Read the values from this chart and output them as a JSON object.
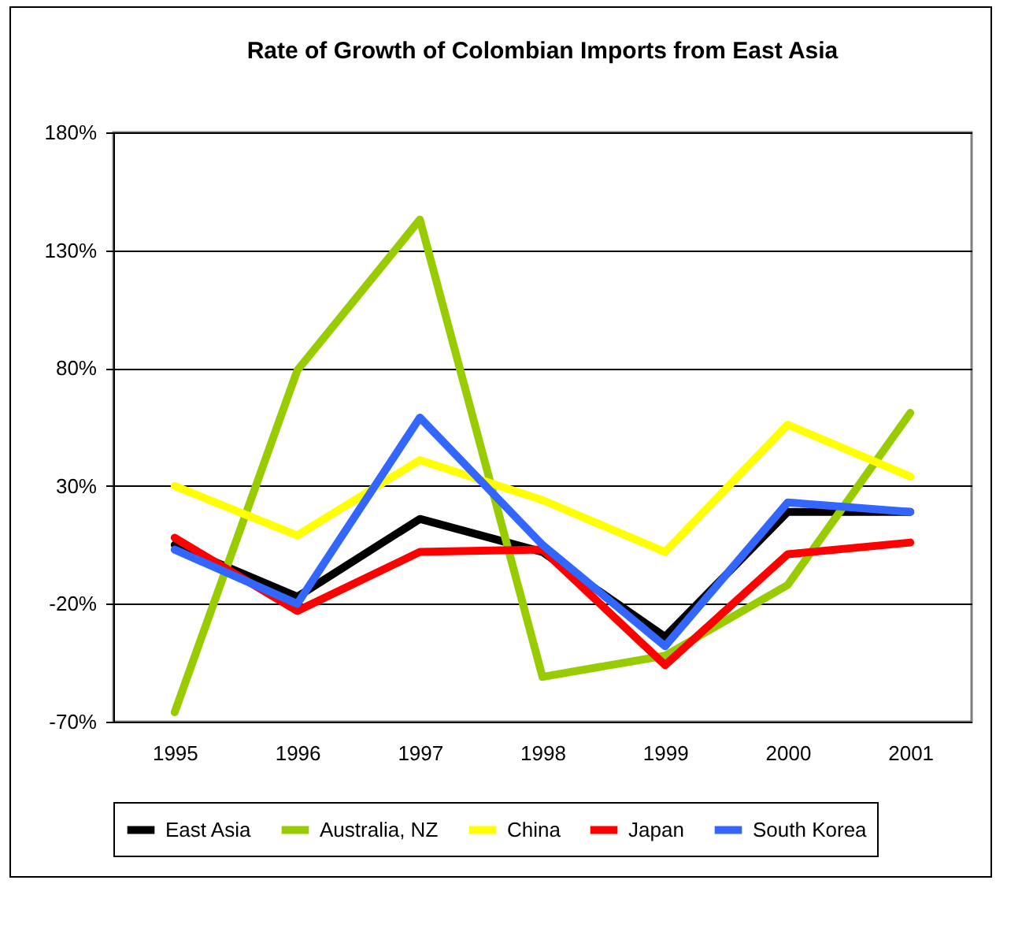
{
  "chart_data": {
    "type": "line",
    "title": "Rate of Growth of Colombian Imports from East Asia",
    "categories": [
      "1995",
      "1996",
      "1997",
      "1998",
      "1999",
      "2000",
      "2001"
    ],
    "series": [
      {
        "name": "East Asia",
        "color": "#000000",
        "values": [
          5,
          -17,
          16,
          2,
          -34,
          19,
          19
        ]
      },
      {
        "name": "Australia, NZ",
        "color": "#99cc00",
        "values": [
          -66,
          79,
          143,
          -51,
          -42,
          -12,
          61
        ]
      },
      {
        "name": "China",
        "color": "#ffff00",
        "values": [
          30,
          9,
          41,
          24,
          2,
          56,
          34
        ]
      },
      {
        "name": "Japan",
        "color": "#ff0000",
        "values": [
          8,
          -23,
          2,
          3,
          -46,
          1,
          6
        ]
      },
      {
        "name": "South Korea",
        "color": "#3366ff",
        "values": [
          3,
          -20,
          59,
          5,
          -38,
          23,
          19
        ]
      }
    ],
    "ylim": [
      -70,
      180
    ],
    "yticks": [
      {
        "value": -70,
        "label": "-70%"
      },
      {
        "value": -20,
        "label": "-20%"
      },
      {
        "value": 30,
        "label": "30%"
      },
      {
        "value": 80,
        "label": "80%"
      },
      {
        "value": 130,
        "label": "130%"
      },
      {
        "value": 180,
        "label": "180%"
      }
    ],
    "grid": "y",
    "legend": "bottom",
    "marker": "none",
    "line_style": "solid"
  }
}
